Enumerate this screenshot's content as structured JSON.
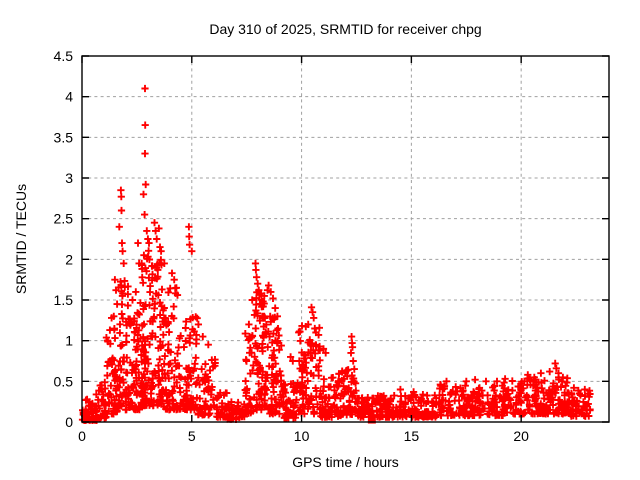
{
  "colors": {
    "marker": "#ff0000",
    "grid": "#a0a0a0",
    "border": "#000000",
    "background": "#ffffff",
    "text": "#000000"
  },
  "chart_data": {
    "type": "scatter",
    "title": "Day 310 of 2025, SRMTID for receiver chpg",
    "xlabel": "GPS time / hours",
    "ylabel": "SRMTID / TECUs",
    "xlim": [
      0,
      24
    ],
    "ylim": [
      0,
      4.5
    ],
    "xticks": [
      0,
      5,
      10,
      15,
      20
    ],
    "yticks": [
      0,
      0.5,
      1,
      1.5,
      2,
      2.5,
      3,
      3.5,
      4,
      4.5
    ],
    "grid": true,
    "grid_style": "dashed",
    "legend": false,
    "marker": "plus",
    "marker_color": "#ff0000",
    "max_point": [
      2.87,
      4.1
    ],
    "square_marker_point": [
      13.2,
      0.03
    ],
    "point_format": "[gps_hour, srmtid_tecu]",
    "notable_points": [
      [
        0.85,
        0.45
      ],
      [
        0.9,
        0.4
      ],
      [
        1.27,
        1.13
      ],
      [
        1.35,
        1.28
      ],
      [
        1.45,
        1.3
      ],
      [
        1.5,
        1.75
      ],
      [
        1.55,
        1.62
      ],
      [
        1.6,
        1.45
      ],
      [
        1.7,
        2.4
      ],
      [
        1.77,
        2.85
      ],
      [
        1.79,
        2.77
      ],
      [
        1.8,
        2.6
      ],
      [
        1.82,
        2.2
      ],
      [
        1.85,
        2.1
      ],
      [
        1.9,
        1.95
      ],
      [
        2.3,
        1.5
      ],
      [
        2.45,
        1.6
      ],
      [
        2.55,
        2.2
      ],
      [
        2.6,
        1.95
      ],
      [
        2.8,
        2.8
      ],
      [
        2.85,
        2.55
      ],
      [
        2.87,
        4.1
      ],
      [
        2.88,
        3.65
      ],
      [
        2.87,
        3.3
      ],
      [
        2.9,
        2.92
      ],
      [
        2.95,
        2.35
      ],
      [
        3.0,
        2.25
      ],
      [
        3.05,
        2.2
      ],
      [
        3.3,
        2.45
      ],
      [
        3.35,
        2.35
      ],
      [
        3.4,
        2.25
      ],
      [
        3.5,
        2.38
      ],
      [
        3.55,
        2.15
      ],
      [
        3.6,
        2.1
      ],
      [
        3.75,
        1.95
      ],
      [
        4.1,
        1.83
      ],
      [
        4.2,
        1.75
      ],
      [
        4.3,
        1.65
      ],
      [
        4.35,
        1.56
      ],
      [
        4.87,
        2.4
      ],
      [
        4.88,
        2.28
      ],
      [
        4.9,
        2.18
      ],
      [
        5.0,
        2.1
      ],
      [
        5.3,
        1.2
      ],
      [
        5.5,
        1.05
      ],
      [
        5.75,
        0.95
      ],
      [
        7.6,
        1.2
      ],
      [
        7.75,
        1.5
      ],
      [
        7.9,
        1.95
      ],
      [
        7.92,
        1.87
      ],
      [
        7.95,
        1.78
      ],
      [
        8.0,
        1.7
      ],
      [
        8.05,
        1.62
      ],
      [
        8.15,
        1.58
      ],
      [
        8.3,
        1.55
      ],
      [
        8.45,
        1.62
      ],
      [
        8.5,
        1.68
      ],
      [
        8.6,
        1.6
      ],
      [
        8.7,
        1.52
      ],
      [
        8.8,
        1.4
      ],
      [
        8.9,
        1.3
      ],
      [
        9.5,
        0.8
      ],
      [
        9.6,
        0.75
      ],
      [
        10.3,
        1.2
      ],
      [
        10.45,
        1.41
      ],
      [
        10.5,
        1.35
      ],
      [
        10.55,
        1.28
      ],
      [
        10.6,
        1.15
      ],
      [
        10.65,
        1.1
      ],
      [
        11.0,
        0.9
      ],
      [
        11.1,
        0.85
      ],
      [
        12.25,
        0.85
      ],
      [
        12.28,
        1.05
      ],
      [
        12.3,
        0.97
      ],
      [
        12.32,
        0.92
      ],
      [
        12.35,
        0.75
      ],
      [
        12.4,
        0.65
      ],
      [
        14.5,
        0.4
      ],
      [
        15.1,
        0.37
      ],
      [
        16.6,
        0.5
      ],
      [
        17.5,
        0.5
      ],
      [
        17.9,
        0.52
      ],
      [
        18.4,
        0.5
      ],
      [
        18.9,
        0.5
      ],
      [
        20.3,
        0.58
      ],
      [
        20.6,
        0.55
      ],
      [
        20.9,
        0.6
      ],
      [
        21.3,
        0.62
      ],
      [
        21.55,
        0.72
      ],
      [
        21.6,
        0.66
      ],
      [
        21.7,
        0.6
      ],
      [
        21.9,
        0.55
      ],
      [
        22.4,
        0.42
      ],
      [
        22.9,
        0.4
      ]
    ],
    "cluster_format": "[hour_start, hour_end, point_count, tecu_min, tecu_max, low_bias_exponent]",
    "density_clusters": [
      [
        0.02,
        0.7,
        55,
        0.02,
        0.28,
        2.0
      ],
      [
        0.6,
        1.1,
        40,
        0.05,
        0.5,
        2.2
      ],
      [
        1.1,
        1.65,
        50,
        0.1,
        1.2,
        1.9
      ],
      [
        1.65,
        2.15,
        60,
        0.15,
        1.75,
        1.8
      ],
      [
        2.15,
        2.65,
        60,
        0.15,
        1.4,
        1.8
      ],
      [
        2.65,
        3.15,
        75,
        0.2,
        2.2,
        1.6
      ],
      [
        3.15,
        3.7,
        75,
        0.2,
        2.0,
        1.7
      ],
      [
        3.7,
        4.55,
        80,
        0.15,
        1.7,
        1.9
      ],
      [
        4.55,
        5.25,
        60,
        0.15,
        1.3,
        1.8
      ],
      [
        5.25,
        6.1,
        50,
        0.08,
        0.8,
        1.8
      ],
      [
        6.1,
        6.6,
        30,
        0.06,
        0.5,
        1.9
      ],
      [
        6.6,
        7.4,
        45,
        0.03,
        0.25,
        1.6
      ],
      [
        7.4,
        7.85,
        40,
        0.1,
        1.1,
        1.6
      ],
      [
        7.85,
        8.55,
        80,
        0.15,
        1.6,
        1.5
      ],
      [
        8.55,
        9.15,
        60,
        0.1,
        1.3,
        1.6
      ],
      [
        9.15,
        9.85,
        50,
        0.05,
        0.5,
        1.7
      ],
      [
        9.85,
        10.85,
        85,
        0.1,
        1.2,
        1.7
      ],
      [
        10.85,
        11.7,
        55,
        0.06,
        0.55,
        1.7
      ],
      [
        11.7,
        12.55,
        65,
        0.08,
        0.7,
        1.7
      ],
      [
        12.55,
        13.45,
        45,
        0.06,
        0.3,
        1.5
      ],
      [
        13.45,
        16.2,
        160,
        0.06,
        0.34,
        1.8
      ],
      [
        16.2,
        19.2,
        170,
        0.08,
        0.46,
        1.9
      ],
      [
        19.2,
        22.1,
        175,
        0.1,
        0.55,
        1.7
      ],
      [
        22.1,
        23.15,
        60,
        0.07,
        0.4,
        1.6
      ]
    ]
  }
}
